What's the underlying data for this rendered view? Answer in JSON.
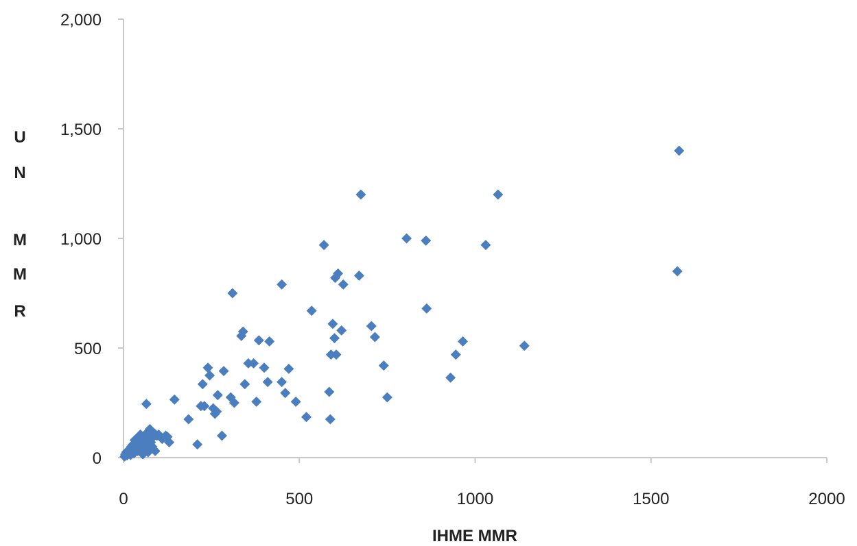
{
  "chart_data": {
    "type": "scatter",
    "xlabel": "IHME MMR",
    "ylabel": "U N M M R",
    "ylabel_letters": [
      "U",
      "N",
      "",
      "M",
      "M",
      "R"
    ],
    "xlim": [
      0,
      2000
    ],
    "ylim": [
      0,
      2000
    ],
    "xticks": [
      0,
      500,
      1000,
      1500,
      2000
    ],
    "xtick_labels": [
      "0",
      "500",
      "1000",
      "1500",
      "2000"
    ],
    "yticks": [
      0,
      500,
      1000,
      1500,
      2000
    ],
    "ytick_labels": [
      "0",
      "500",
      "1,000",
      "1,500",
      "2,000"
    ],
    "grid": false,
    "legend": "none",
    "marker": "diamond",
    "marker_color": "#4a7ebf",
    "axis_color": "#c8c8c8",
    "points": [
      [
        3,
        5
      ],
      [
        5,
        15
      ],
      [
        8,
        25
      ],
      [
        10,
        10
      ],
      [
        12,
        30
      ],
      [
        15,
        20
      ],
      [
        18,
        40
      ],
      [
        20,
        12
      ],
      [
        22,
        50
      ],
      [
        25,
        35
      ],
      [
        27,
        60
      ],
      [
        30,
        20
      ],
      [
        32,
        80
      ],
      [
        35,
        45
      ],
      [
        38,
        65
      ],
      [
        40,
        30
      ],
      [
        42,
        95
      ],
      [
        45,
        55
      ],
      [
        48,
        105
      ],
      [
        50,
        40
      ],
      [
        52,
        75
      ],
      [
        55,
        15
      ],
      [
        58,
        90
      ],
      [
        60,
        60
      ],
      [
        62,
        45
      ],
      [
        65,
        110
      ],
      [
        68,
        80
      ],
      [
        70,
        25
      ],
      [
        72,
        100
      ],
      [
        75,
        130
      ],
      [
        78,
        70
      ],
      [
        80,
        120
      ],
      [
        82,
        50
      ],
      [
        85,
        95
      ],
      [
        88,
        110
      ],
      [
        90,
        30
      ],
      [
        95,
        100
      ],
      [
        100,
        105
      ],
      [
        110,
        85
      ],
      [
        120,
        100
      ],
      [
        125,
        95
      ],
      [
        130,
        70
      ],
      [
        145,
        265
      ],
      [
        65,
        245
      ],
      [
        185,
        175
      ],
      [
        210,
        60
      ],
      [
        220,
        235
      ],
      [
        225,
        335
      ],
      [
        230,
        235
      ],
      [
        240,
        410
      ],
      [
        245,
        375
      ],
      [
        255,
        225
      ],
      [
        260,
        200
      ],
      [
        265,
        210
      ],
      [
        268,
        285
      ],
      [
        280,
        100
      ],
      [
        285,
        395
      ],
      [
        305,
        275
      ],
      [
        310,
        750
      ],
      [
        315,
        250
      ],
      [
        335,
        555
      ],
      [
        340,
        575
      ],
      [
        345,
        335
      ],
      [
        355,
        430
      ],
      [
        370,
        430
      ],
      [
        378,
        255
      ],
      [
        385,
        535
      ],
      [
        400,
        410
      ],
      [
        410,
        345
      ],
      [
        415,
        530
      ],
      [
        450,
        345
      ],
      [
        450,
        790
      ],
      [
        460,
        295
      ],
      [
        470,
        405
      ],
      [
        490,
        255
      ],
      [
        520,
        185
      ],
      [
        535,
        670
      ],
      [
        570,
        970
      ],
      [
        585,
        300
      ],
      [
        588,
        175
      ],
      [
        590,
        470
      ],
      [
        595,
        610
      ],
      [
        600,
        545
      ],
      [
        602,
        820
      ],
      [
        605,
        470
      ],
      [
        610,
        840
      ],
      [
        620,
        580
      ],
      [
        625,
        790
      ],
      [
        670,
        830
      ],
      [
        675,
        1200
      ],
      [
        705,
        600
      ],
      [
        715,
        550
      ],
      [
        740,
        420
      ],
      [
        750,
        275
      ],
      [
        805,
        1000
      ],
      [
        860,
        990
      ],
      [
        862,
        680
      ],
      [
        930,
        365
      ],
      [
        945,
        470
      ],
      [
        965,
        530
      ],
      [
        1030,
        970
      ],
      [
        1065,
        1200
      ],
      [
        1140,
        510
      ],
      [
        1575,
        850
      ],
      [
        1580,
        1400
      ]
    ]
  }
}
